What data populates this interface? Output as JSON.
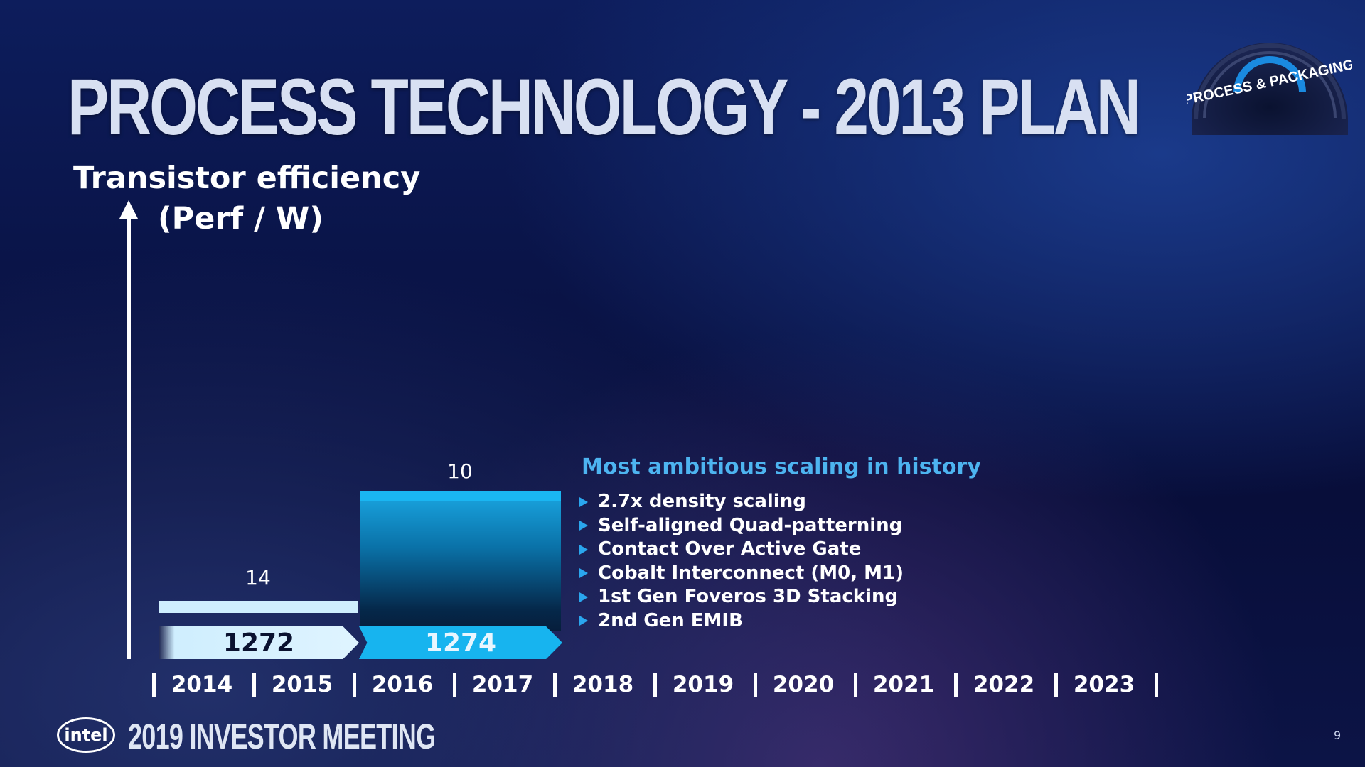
{
  "slide": {
    "title": "PROCESS TECHNOLOGY - 2013 PLAN",
    "badge_text": "PROCESS & PACKAGING",
    "event": "2019 INVESTOR MEETING",
    "logo_text": "intel",
    "page_number": "9"
  },
  "chart_data": {
    "type": "bar",
    "ylabel_line1": "Transistor efficiency",
    "ylabel_line2": "(Perf / W)",
    "nodes": [
      {
        "label": "14",
        "process": "1272",
        "start_year": "2014",
        "end_year": "2016",
        "relative_level": 0.12
      },
      {
        "label": "10",
        "process": "1274",
        "start_year": "2016",
        "end_year": "2018",
        "relative_level": 0.48
      }
    ],
    "years": [
      "2014",
      "2015",
      "2016",
      "2017",
      "2018",
      "2019",
      "2020",
      "2021",
      "2022",
      "2023"
    ],
    "colors": {
      "node14": "#cfeefe",
      "node10": "#17b4ef",
      "bullet_accent": "#4db4f0"
    }
  },
  "bullets": {
    "heading": "Most ambitious scaling in history",
    "items": [
      "2.7x density scaling",
      "Self-aligned Quad-patterning",
      "Contact Over Active Gate",
      "Cobalt Interconnect (M0, M1)",
      "1st Gen Foveros 3D Stacking",
      "2nd Gen EMIB"
    ]
  }
}
